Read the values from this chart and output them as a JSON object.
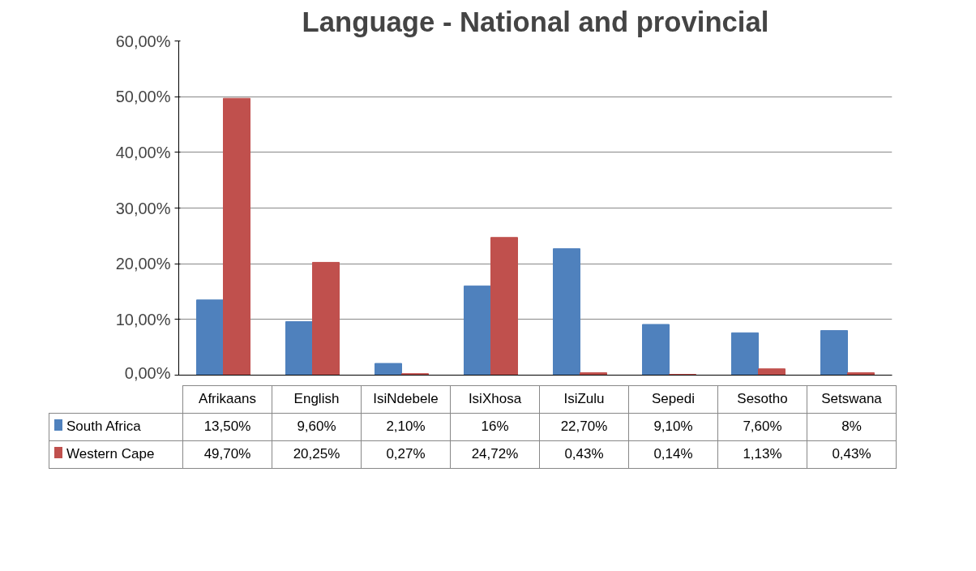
{
  "chart_data": {
    "type": "bar",
    "title": "Language - National and provincial",
    "categories": [
      "Afrikaans",
      "English",
      "IsiNdebele",
      "IsiXhosa",
      "IsiZulu",
      "Sepedi",
      "Sesotho",
      "Setswana"
    ],
    "series": [
      {
        "name": "South Africa",
        "color": "#4f81bd",
        "values": [
          13.5,
          9.6,
          2.1,
          16,
          22.7,
          9.1,
          7.6,
          8
        ],
        "value_labels": [
          "13,50%",
          "9,60%",
          "2,10%",
          "16%",
          "22,70%",
          "9,10%",
          "7,60%",
          "8%"
        ]
      },
      {
        "name": "Western Cape",
        "color": "#c0504d",
        "values": [
          49.7,
          20.25,
          0.27,
          24.72,
          0.43,
          0.14,
          1.13,
          0.43
        ],
        "value_labels": [
          "49,70%",
          "20,25%",
          "0,27%",
          "24,72%",
          "0,43%",
          "0,14%",
          "1,13%",
          "0,43%"
        ]
      }
    ],
    "ylim": [
      0,
      60
    ],
    "yticks": [
      {
        "value": 0,
        "label": "0,00%"
      },
      {
        "value": 10,
        "label": "10,00%"
      },
      {
        "value": 20,
        "label": "20,00%"
      },
      {
        "value": 30,
        "label": "30,00%"
      },
      {
        "value": 40,
        "label": "40,00%"
      },
      {
        "value": 50,
        "label": "50,00%"
      },
      {
        "value": 60,
        "label": "60,00%"
      }
    ],
    "grid": "y",
    "legend": "bottom"
  }
}
